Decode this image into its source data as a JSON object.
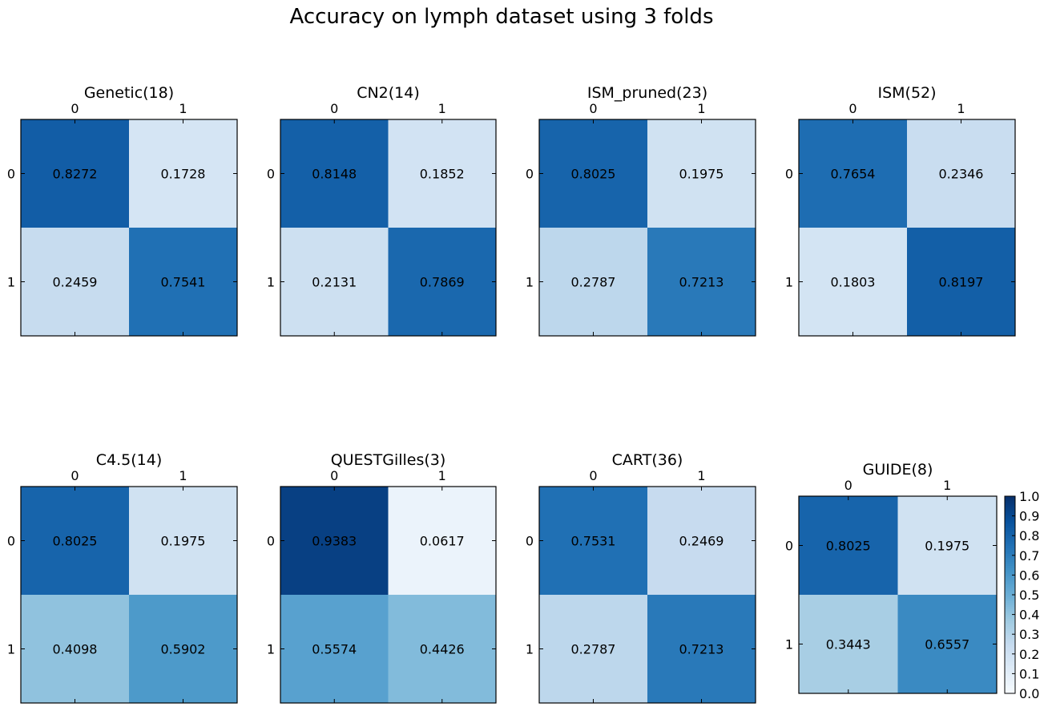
{
  "chart_data": {
    "type": "heatmap",
    "title": "Accuracy on lymph dataset using 3 folds",
    "colormap": "Blues",
    "vmin": 0.0,
    "vmax": 1.0,
    "colorbar_ticks": [
      "0.0",
      "0.1",
      "0.2",
      "0.3",
      "0.4",
      "0.5",
      "0.6",
      "0.7",
      "0.8",
      "0.9",
      "1.0"
    ],
    "panels": [
      {
        "title": "Genetic(18)",
        "xticks": [
          "0",
          "1"
        ],
        "yticks": [
          "0",
          "1"
        ],
        "values": [
          [
            0.8272,
            0.1728
          ],
          [
            0.2459,
            0.7541
          ]
        ],
        "labels": [
          [
            "0.8272",
            "0.1728"
          ],
          [
            "0.2459",
            "0.7541"
          ]
        ]
      },
      {
        "title": "CN2(14)",
        "xticks": [
          "0",
          "1"
        ],
        "yticks": [
          "0",
          "1"
        ],
        "values": [
          [
            0.8148,
            0.1852
          ],
          [
            0.2131,
            0.7869
          ]
        ],
        "labels": [
          [
            "0.8148",
            "0.1852"
          ],
          [
            "0.2131",
            "0.7869"
          ]
        ]
      },
      {
        "title": "ISM_pruned(23)",
        "xticks": [
          "0",
          "1"
        ],
        "yticks": [
          "0",
          "1"
        ],
        "values": [
          [
            0.8025,
            0.1975
          ],
          [
            0.2787,
            0.7213
          ]
        ],
        "labels": [
          [
            "0.8025",
            "0.1975"
          ],
          [
            "0.2787",
            "0.7213"
          ]
        ]
      },
      {
        "title": "ISM(52)",
        "xticks": [
          "0",
          "1"
        ],
        "yticks": [
          "0",
          "1"
        ],
        "values": [
          [
            0.7654,
            0.2346
          ],
          [
            0.1803,
            0.8197
          ]
        ],
        "labels": [
          [
            "0.7654",
            "0.2346"
          ],
          [
            "0.1803",
            "0.8197"
          ]
        ]
      },
      {
        "title": "C4.5(14)",
        "xticks": [
          "0",
          "1"
        ],
        "yticks": [
          "0",
          "1"
        ],
        "values": [
          [
            0.8025,
            0.1975
          ],
          [
            0.4098,
            0.5902
          ]
        ],
        "labels": [
          [
            "0.8025",
            "0.1975"
          ],
          [
            "0.4098",
            "0.5902"
          ]
        ]
      },
      {
        "title": "QUESTGilles(3)",
        "xticks": [
          "0",
          "1"
        ],
        "yticks": [
          "0",
          "1"
        ],
        "values": [
          [
            0.9383,
            0.0617
          ],
          [
            0.5574,
            0.4426
          ]
        ],
        "labels": [
          [
            "0.9383",
            "0.0617"
          ],
          [
            "0.5574",
            "0.4426"
          ]
        ]
      },
      {
        "title": "CART(36)",
        "xticks": [
          "0",
          "1"
        ],
        "yticks": [
          "0",
          "1"
        ],
        "values": [
          [
            0.7531,
            0.2469
          ],
          [
            0.2787,
            0.7213
          ]
        ],
        "labels": [
          [
            "0.7531",
            "0.2469"
          ],
          [
            "0.2787",
            "0.7213"
          ]
        ]
      },
      {
        "title": "GUIDE(8)",
        "xticks": [
          "0",
          "1"
        ],
        "yticks": [
          "0",
          "1"
        ],
        "values": [
          [
            0.8025,
            0.1975
          ],
          [
            0.3443,
            0.6557
          ]
        ],
        "labels": [
          [
            "0.8025",
            "0.1975"
          ],
          [
            "0.3443",
            "0.6557"
          ]
        ]
      }
    ]
  }
}
